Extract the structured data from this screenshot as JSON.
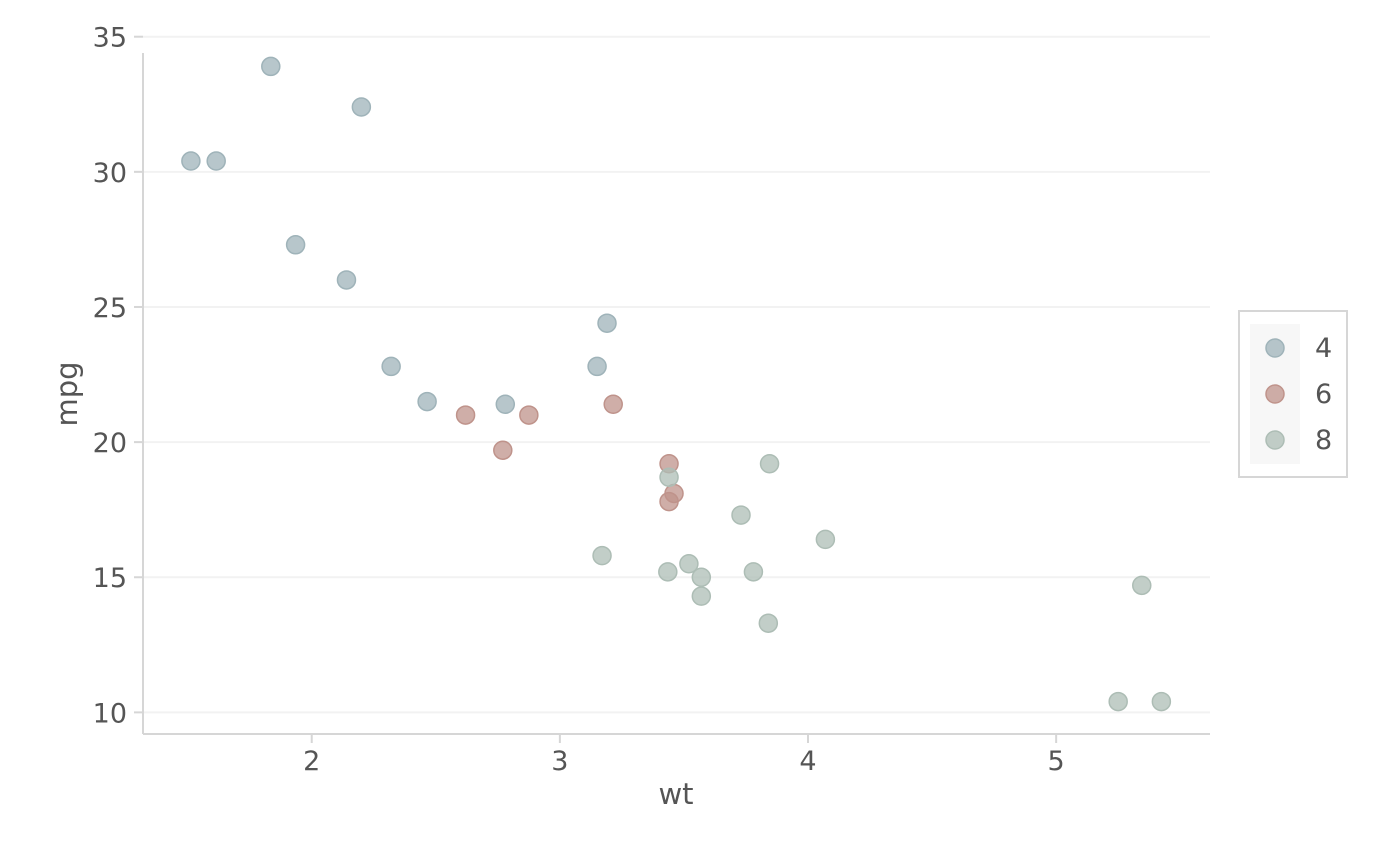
{
  "chart_data": {
    "type": "scatter",
    "title": "",
    "xlabel": "wt",
    "ylabel": "mpg",
    "xlim": [
      1.32,
      5.62
    ],
    "ylim": [
      9.2,
      35.1
    ],
    "x_ticks": [
      2,
      3,
      4,
      5
    ],
    "y_ticks": [
      10,
      15,
      20,
      25,
      30,
      35
    ],
    "grid": true,
    "legend": {
      "title": "",
      "position": "right"
    },
    "series": [
      {
        "name": "4",
        "color": "#9fb3b9",
        "points": [
          [
            2.32,
            22.8
          ],
          [
            3.19,
            24.4
          ],
          [
            3.15,
            22.8
          ],
          [
            2.2,
            32.4
          ],
          [
            1.615,
            30.4
          ],
          [
            1.835,
            33.9
          ],
          [
            2.465,
            21.5
          ],
          [
            1.935,
            27.3
          ],
          [
            2.14,
            26.0
          ],
          [
            1.513,
            30.4
          ],
          [
            2.78,
            21.4
          ]
        ]
      },
      {
        "name": "6",
        "color": "#bf938b",
        "points": [
          [
            2.62,
            21.0
          ],
          [
            2.875,
            21.0
          ],
          [
            3.215,
            21.4
          ],
          [
            3.46,
            18.1
          ],
          [
            3.44,
            19.2
          ],
          [
            3.44,
            17.8
          ],
          [
            2.77,
            19.7
          ]
        ]
      },
      {
        "name": "8",
        "color": "#adbdb5",
        "points": [
          [
            3.44,
            18.7
          ],
          [
            3.57,
            14.3
          ],
          [
            4.07,
            16.4
          ],
          [
            3.73,
            17.3
          ],
          [
            3.78,
            15.2
          ],
          [
            5.25,
            10.4
          ],
          [
            5.424,
            10.4
          ],
          [
            5.345,
            14.7
          ],
          [
            3.52,
            15.5
          ],
          [
            3.435,
            15.2
          ],
          [
            3.84,
            13.3
          ],
          [
            3.845,
            19.2
          ],
          [
            3.17,
            15.8
          ],
          [
            3.57,
            15.0
          ]
        ]
      }
    ]
  }
}
